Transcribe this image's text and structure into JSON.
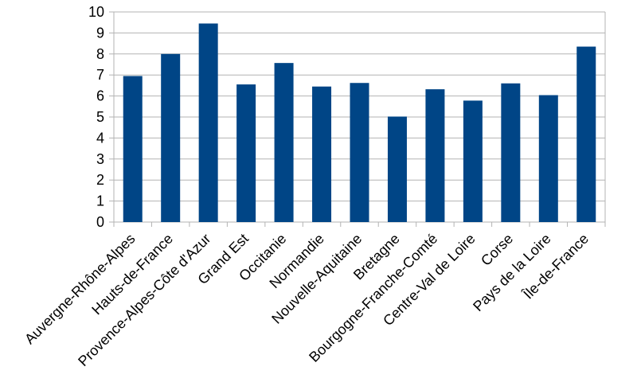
{
  "chart_data": {
    "type": "bar",
    "title": "",
    "xlabel": "",
    "ylabel": "",
    "categories": [
      "Auvergne-Rhône-Alpes",
      "Hauts-de-France",
      "Provence-Alpes-Côte d'Azur",
      "Grand Est",
      "Occitanie",
      "Normandie",
      "Nouvelle-Aquitaine",
      "Bretagne",
      "Bourgogne-Franche-Comté",
      "Centre-Val de Loire",
      "Corse",
      "Pays de la Loire",
      "Île-de-France"
    ],
    "values": [
      6.95,
      8.0,
      9.45,
      6.55,
      7.57,
      6.45,
      6.62,
      5.02,
      6.32,
      5.78,
      6.6,
      6.04,
      8.35
    ],
    "ylim": [
      0,
      10
    ],
    "yticks": [
      "0",
      "1",
      "2",
      "3",
      "4",
      "5",
      "6",
      "7",
      "8",
      "9",
      "10"
    ],
    "grid": "horizontal",
    "legend": "none",
    "bar_color": "#004586",
    "grid_color": "#b3b3b3",
    "axis_color": "#b3b3b3"
  }
}
